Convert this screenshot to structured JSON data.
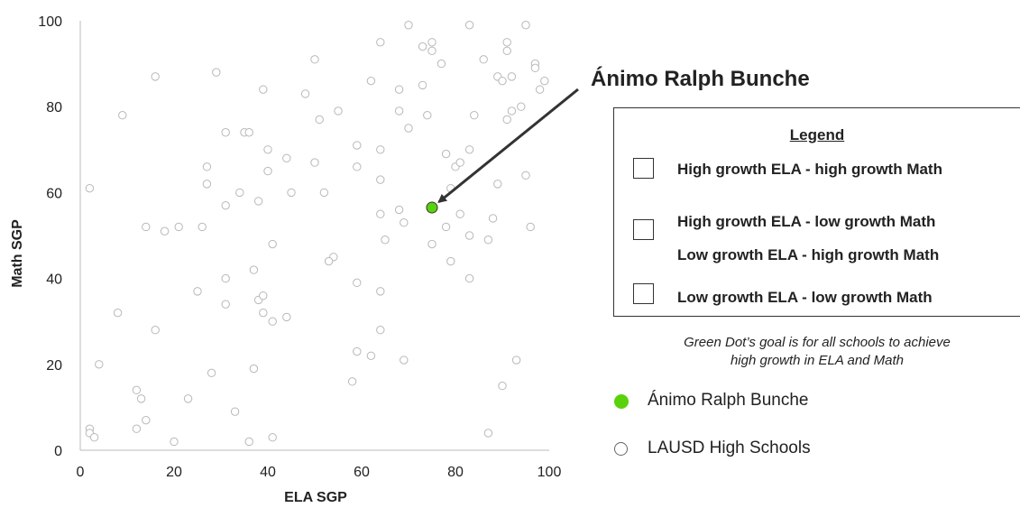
{
  "chart_data": {
    "type": "scatter",
    "xlabel": "ELA SGP",
    "ylabel": "Math SGP",
    "xlim": [
      0,
      100
    ],
    "ylim": [
      0,
      100
    ],
    "xticks": [
      "0",
      "20",
      "40",
      "60",
      "80",
      "100"
    ],
    "yticks": [
      "0",
      "20",
      "40",
      "60",
      "80",
      "100"
    ],
    "grid": false,
    "series": [
      {
        "name": "LAUSD High Schools",
        "marker": "hollow-circle",
        "color": "#b8b8b8",
        "points": [
          [
            70,
            99
          ],
          [
            83,
            99
          ],
          [
            95,
            99
          ],
          [
            64,
            95
          ],
          [
            73,
            94
          ],
          [
            75,
            95
          ],
          [
            75,
            93
          ],
          [
            91,
            95
          ],
          [
            91,
            93
          ],
          [
            77,
            90
          ],
          [
            86,
            91
          ],
          [
            97,
            90
          ],
          [
            97,
            89
          ],
          [
            50,
            91
          ],
          [
            16,
            87
          ],
          [
            29,
            88
          ],
          [
            89,
            87
          ],
          [
            90,
            86
          ],
          [
            92,
            87
          ],
          [
            99,
            86
          ],
          [
            98,
            84
          ],
          [
            39,
            84
          ],
          [
            62,
            86
          ],
          [
            48,
            83
          ],
          [
            68,
            84
          ],
          [
            73,
            85
          ],
          [
            9,
            78
          ],
          [
            55,
            79
          ],
          [
            68,
            79
          ],
          [
            74,
            78
          ],
          [
            84,
            78
          ],
          [
            92,
            79
          ],
          [
            91,
            77
          ],
          [
            94,
            80
          ],
          [
            51,
            77
          ],
          [
            31,
            74
          ],
          [
            35,
            74
          ],
          [
            36,
            74
          ],
          [
            70,
            75
          ],
          [
            59,
            71
          ],
          [
            64,
            70
          ],
          [
            40,
            70
          ],
          [
            44,
            68
          ],
          [
            27,
            66
          ],
          [
            40,
            65
          ],
          [
            50,
            67
          ],
          [
            59,
            66
          ],
          [
            78,
            69
          ],
          [
            80,
            66
          ],
          [
            81,
            67
          ],
          [
            83,
            70
          ],
          [
            95,
            64
          ],
          [
            27,
            62
          ],
          [
            64,
            63
          ],
          [
            34,
            60
          ],
          [
            45,
            60
          ],
          [
            52,
            60
          ],
          [
            2,
            61
          ],
          [
            38,
            58
          ],
          [
            31,
            57
          ],
          [
            79,
            61
          ],
          [
            89,
            62
          ],
          [
            68,
            56
          ],
          [
            64,
            55
          ],
          [
            69,
            53
          ],
          [
            78,
            52
          ],
          [
            81,
            55
          ],
          [
            88,
            54
          ],
          [
            83,
            50
          ],
          [
            87,
            49
          ],
          [
            96,
            52
          ],
          [
            14,
            52
          ],
          [
            18,
            51
          ],
          [
            21,
            52
          ],
          [
            26,
            52
          ],
          [
            41,
            48
          ],
          [
            65,
            49
          ],
          [
            75,
            48
          ],
          [
            54,
            45
          ],
          [
            53,
            44
          ],
          [
            79,
            44
          ],
          [
            37,
            42
          ],
          [
            31,
            40
          ],
          [
            59,
            39
          ],
          [
            83,
            40
          ],
          [
            25,
            37
          ],
          [
            38,
            35
          ],
          [
            39,
            36
          ],
          [
            64,
            37
          ],
          [
            31,
            34
          ],
          [
            39,
            32
          ],
          [
            41,
            30
          ],
          [
            44,
            31
          ],
          [
            8,
            32
          ],
          [
            16,
            28
          ],
          [
            64,
            28
          ],
          [
            59,
            23
          ],
          [
            62,
            22
          ],
          [
            69,
            21
          ],
          [
            4,
            20
          ],
          [
            37,
            19
          ],
          [
            28,
            18
          ],
          [
            58,
            16
          ],
          [
            93,
            21
          ],
          [
            90,
            15
          ],
          [
            12,
            14
          ],
          [
            13,
            12
          ],
          [
            23,
            12
          ],
          [
            33,
            9
          ],
          [
            14,
            7
          ],
          [
            12,
            5
          ],
          [
            2,
            5
          ],
          [
            2,
            4
          ],
          [
            3,
            3
          ],
          [
            20,
            2
          ],
          [
            36,
            2
          ],
          [
            41,
            3
          ],
          [
            87,
            4
          ]
        ]
      },
      {
        "name": "Ánimo Ralph Bunche",
        "marker": "filled-circle",
        "color": "#59d20b",
        "points": [
          [
            75,
            56.5
          ]
        ]
      }
    ],
    "annotations": [
      {
        "text": "Ánimo Ralph Bunche",
        "arrow_to": [
          75,
          56.5
        ]
      }
    ]
  },
  "legend": {
    "title": "Legend",
    "items": [
      "High growth ELA -  high growth Math",
      "High growth ELA -  low growth Math",
      "Low growth ELA -  high growth Math",
      "Low growth ELA -  low growth Math"
    ]
  },
  "goal_note": {
    "line1": "Green Dot’s goal is for all schools to achieve",
    "line2": "high growth in ELA and Math"
  },
  "key": {
    "school_label": "Ánimo Ralph Bunche",
    "district_label": "LAUSD High Schools"
  }
}
